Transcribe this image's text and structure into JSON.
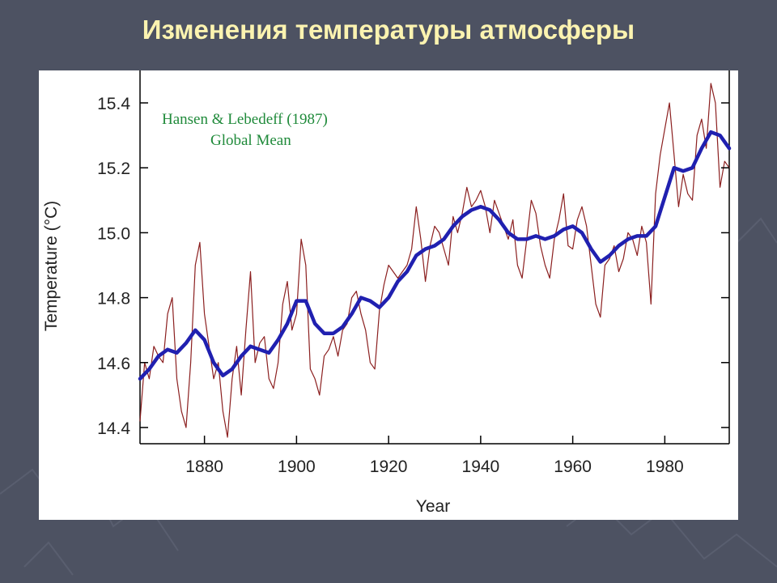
{
  "slide": {
    "title": "Изменения температуры атмосферы"
  },
  "colors": {
    "background": "#4d5262",
    "title": "#fbf3b0",
    "annotation": "#1f8a3a",
    "annual_series": "#8b1f1f",
    "smoothed_series": "#2020b0"
  },
  "chart_data": {
    "type": "line",
    "title": "",
    "annotation": [
      "Hansen & Lebedeff (1987)",
      "Global Mean"
    ],
    "xlabel": "Year",
    "ylabel": "Temperature (°C)",
    "xlim": [
      1866,
      1994
    ],
    "ylim": [
      14.35,
      15.47
    ],
    "xticks": [
      1880,
      1900,
      1920,
      1940,
      1960,
      1980
    ],
    "yticks": [
      14.4,
      14.6,
      14.8,
      15.0,
      15.2,
      15.4
    ],
    "ytick_labels": [
      "14.4",
      "14.6",
      "14.8",
      "15.0",
      "15.2",
      "15.4"
    ],
    "grid": false,
    "legend": "none",
    "series": [
      {
        "style": "thin",
        "x": [
          1866,
          1867,
          1868,
          1869,
          1870,
          1871,
          1872,
          1873,
          1874,
          1875,
          1876,
          1877,
          1878,
          1879,
          1880,
          1881,
          1882,
          1883,
          1884,
          1885,
          1886,
          1887,
          1888,
          1889,
          1890,
          1891,
          1892,
          1893,
          1894,
          1895,
          1896,
          1897,
          1898,
          1899,
          1900,
          1901,
          1902,
          1903,
          1904,
          1905,
          1906,
          1907,
          1908,
          1909,
          1910,
          1911,
          1912,
          1913,
          1914,
          1915,
          1916,
          1917,
          1918,
          1919,
          1920,
          1921,
          1922,
          1923,
          1924,
          1925,
          1926,
          1927,
          1928,
          1929,
          1930,
          1931,
          1932,
          1933,
          1934,
          1935,
          1936,
          1937,
          1938,
          1939,
          1940,
          1941,
          1942,
          1943,
          1944,
          1945,
          1946,
          1947,
          1948,
          1949,
          1950,
          1951,
          1952,
          1953,
          1954,
          1955,
          1956,
          1957,
          1958,
          1959,
          1960,
          1961,
          1962,
          1963,
          1964,
          1965,
          1966,
          1967,
          1968,
          1969,
          1970,
          1971,
          1972,
          1973,
          1974,
          1975,
          1976,
          1977,
          1978,
          1979,
          1980,
          1981,
          1982,
          1983,
          1984,
          1985,
          1986,
          1987,
          1988,
          1989,
          1990,
          1991,
          1992,
          1993,
          1994
        ],
        "values": [
          14.42,
          14.6,
          14.55,
          14.65,
          14.62,
          14.6,
          14.75,
          14.8,
          14.55,
          14.45,
          14.4,
          14.6,
          14.9,
          14.97,
          14.75,
          14.65,
          14.55,
          14.6,
          14.45,
          14.37,
          14.55,
          14.65,
          14.5,
          14.7,
          14.88,
          14.6,
          14.66,
          14.68,
          14.55,
          14.52,
          14.6,
          14.78,
          14.85,
          14.7,
          14.75,
          14.98,
          14.9,
          14.58,
          14.55,
          14.5,
          14.62,
          14.64,
          14.68,
          14.62,
          14.7,
          14.72,
          14.8,
          14.82,
          14.75,
          14.7,
          14.6,
          14.58,
          14.76,
          14.84,
          14.9,
          14.88,
          14.86,
          14.88,
          14.9,
          14.95,
          15.08,
          14.98,
          14.85,
          14.96,
          15.02,
          15.0,
          14.95,
          14.9,
          15.05,
          15.0,
          15.06,
          15.14,
          15.08,
          15.1,
          15.13,
          15.08,
          15.0,
          15.1,
          15.06,
          15.02,
          14.98,
          15.04,
          14.9,
          14.86,
          14.98,
          15.1,
          15.06,
          14.96,
          14.9,
          14.86,
          14.98,
          15.04,
          15.12,
          14.96,
          14.95,
          15.04,
          15.08,
          15.02,
          14.9,
          14.78,
          14.74,
          14.9,
          14.92,
          14.96,
          14.88,
          14.92,
          15.0,
          14.98,
          14.93,
          15.02,
          14.97,
          14.78,
          15.12,
          15.24,
          15.32,
          15.4,
          15.24,
          15.08,
          15.18,
          15.12,
          15.1,
          15.3,
          15.35,
          15.26,
          15.46,
          15.4,
          15.14,
          15.22,
          15.2
        ]
      },
      {
        "style": "smoothed",
        "x": [
          1866,
          1868,
          1870,
          1872,
          1874,
          1876,
          1878,
          1880,
          1882,
          1884,
          1886,
          1888,
          1890,
          1892,
          1894,
          1896,
          1898,
          1900,
          1902,
          1904,
          1906,
          1908,
          1910,
          1912,
          1914,
          1916,
          1918,
          1920,
          1922,
          1924,
          1926,
          1928,
          1930,
          1932,
          1934,
          1936,
          1938,
          1940,
          1942,
          1944,
          1946,
          1948,
          1950,
          1952,
          1954,
          1956,
          1958,
          1960,
          1962,
          1964,
          1966,
          1968,
          1970,
          1972,
          1974,
          1976,
          1978,
          1980,
          1982,
          1984,
          1986,
          1988,
          1990,
          1992,
          1994
        ],
        "values": [
          14.55,
          14.58,
          14.62,
          14.64,
          14.63,
          14.66,
          14.7,
          14.67,
          14.6,
          14.56,
          14.58,
          14.62,
          14.65,
          14.64,
          14.63,
          14.67,
          14.72,
          14.79,
          14.79,
          14.72,
          14.69,
          14.69,
          14.71,
          14.75,
          14.8,
          14.79,
          14.77,
          14.8,
          14.85,
          14.88,
          14.93,
          14.95,
          14.96,
          14.98,
          15.02,
          15.05,
          15.07,
          15.08,
          15.07,
          15.04,
          15.0,
          14.98,
          14.98,
          14.99,
          14.98,
          14.99,
          15.01,
          15.02,
          15.0,
          14.95,
          14.91,
          14.93,
          14.96,
          14.98,
          14.99,
          14.99,
          15.02,
          15.11,
          15.2,
          15.19,
          15.2,
          15.26,
          15.31,
          15.3,
          15.26
        ]
      }
    ]
  }
}
